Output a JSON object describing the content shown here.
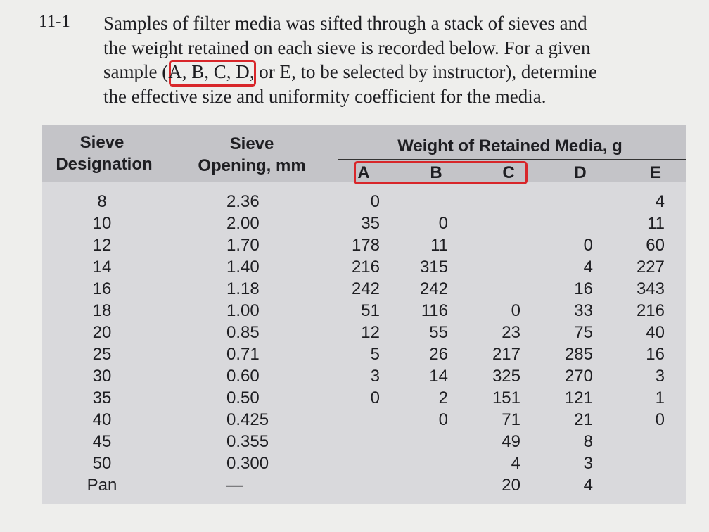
{
  "problem": {
    "number": "11-1",
    "lines": [
      "Samples of filter media was sifted through a stack of sieves and",
      "the weight retained on each sieve is recorded below. For a given",
      "sample (A, B, C, D, or E, to be selected by instructor), determine",
      "the effective size and uniformity coefficient for the media."
    ]
  },
  "table": {
    "headers": {
      "designation": [
        "Sieve",
        "Designation"
      ],
      "opening": [
        "Sieve",
        "Opening, mm"
      ],
      "weight": "Weight of Retained Media, g",
      "samples": [
        "A",
        "B",
        "C",
        "D",
        "E"
      ]
    },
    "rows": [
      [
        8,
        "2.36",
        0,
        null,
        null,
        null,
        4
      ],
      [
        10,
        "2.00",
        35,
        0,
        null,
        null,
        11
      ],
      [
        12,
        "1.70",
        178,
        11,
        null,
        0,
        60
      ],
      [
        14,
        "1.40",
        216,
        315,
        null,
        4,
        227
      ],
      [
        16,
        "1.18",
        242,
        242,
        null,
        16,
        343
      ],
      [
        18,
        "1.00",
        51,
        116,
        0,
        33,
        216
      ],
      [
        20,
        "0.85",
        12,
        55,
        23,
        75,
        40
      ],
      [
        25,
        "0.71",
        5,
        26,
        217,
        285,
        16
      ],
      [
        30,
        "0.60",
        3,
        14,
        325,
        270,
        3
      ],
      [
        35,
        "0.50",
        0,
        2,
        151,
        121,
        1
      ],
      [
        40,
        "0.425",
        null,
        0,
        71,
        21,
        0
      ],
      [
        45,
        "0.355",
        null,
        null,
        49,
        8,
        null
      ],
      [
        50,
        "0.300",
        null,
        null,
        4,
        3,
        null
      ],
      [
        "Pan",
        "—",
        null,
        null,
        20,
        4,
        null
      ]
    ]
  }
}
